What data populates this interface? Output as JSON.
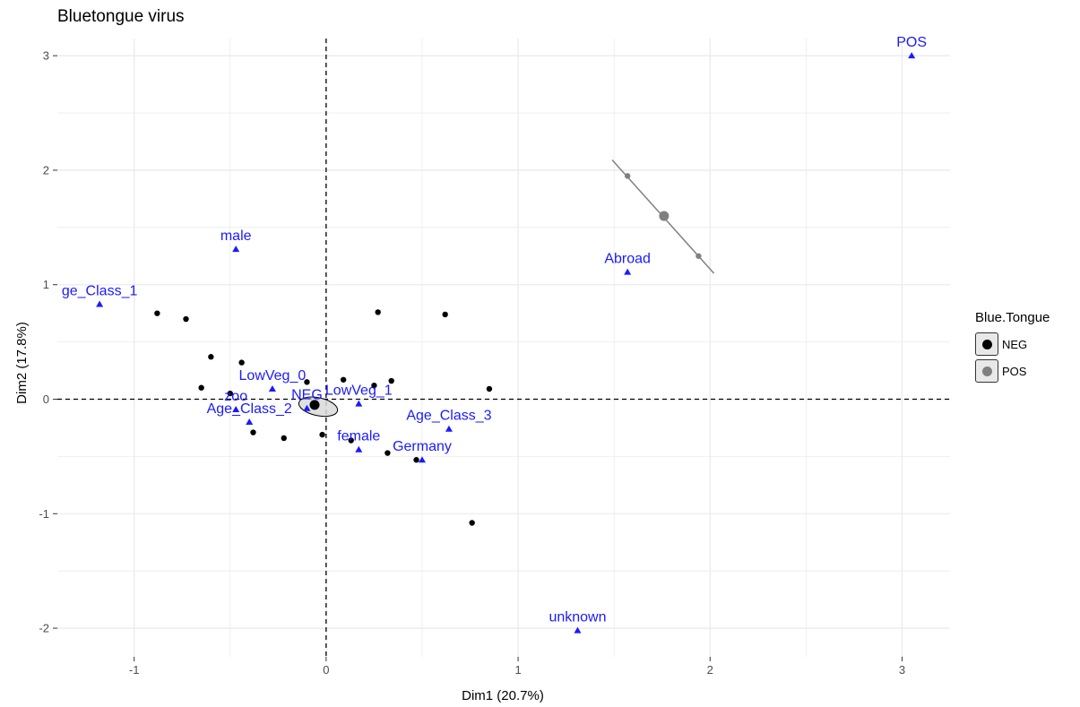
{
  "title": "Bluetongue virus",
  "chart_data": {
    "type": "scatter",
    "title": "Bluetongue virus",
    "xlabel": "Dim1 (20.7%)",
    "ylabel": "Dim2 (17.8%)",
    "xlim": [
      -1.4,
      3.25
    ],
    "ylim": [
      -2.25,
      3.15
    ],
    "x_ticks": [
      -1,
      0,
      1,
      2,
      3
    ],
    "x_tick_labels": [
      "-1",
      "0",
      "1",
      "2",
      "3"
    ],
    "y_ticks": [
      -2,
      -1,
      0,
      1,
      2,
      3
    ],
    "y_tick_labels": [
      "-2",
      "-1",
      "0",
      "1",
      "2",
      "3"
    ],
    "grid": true,
    "reference_lines": {
      "x": 0,
      "y": 0,
      "style": "dashed"
    },
    "legend": {
      "title": "Blue.Tongue",
      "position": "right",
      "items": [
        {
          "label": "NEG",
          "color": "#000000"
        },
        {
          "label": "POS",
          "color": "#808080"
        }
      ]
    },
    "individuals": [
      {
        "group": "NEG",
        "x": -0.88,
        "y": 0.75
      },
      {
        "group": "NEG",
        "x": -0.73,
        "y": 0.7
      },
      {
        "group": "NEG",
        "x": -0.6,
        "y": 0.37
      },
      {
        "group": "NEG",
        "x": -0.65,
        "y": 0.1
      },
      {
        "group": "NEG",
        "x": -0.5,
        "y": 0.05
      },
      {
        "group": "NEG",
        "x": -0.44,
        "y": 0.32
      },
      {
        "group": "NEG",
        "x": -0.38,
        "y": -0.29
      },
      {
        "group": "NEG",
        "x": -0.22,
        "y": -0.34
      },
      {
        "group": "NEG",
        "x": -0.02,
        "y": -0.31
      },
      {
        "group": "NEG",
        "x": -0.1,
        "y": 0.15
      },
      {
        "group": "NEG",
        "x": 0.09,
        "y": 0.17
      },
      {
        "group": "NEG",
        "x": 0.25,
        "y": 0.12
      },
      {
        "group": "NEG",
        "x": 0.27,
        "y": 0.76
      },
      {
        "group": "NEG",
        "x": 0.34,
        "y": 0.16
      },
      {
        "group": "NEG",
        "x": 0.62,
        "y": 0.74
      },
      {
        "group": "NEG",
        "x": 0.85,
        "y": 0.09
      },
      {
        "group": "NEG",
        "x": 0.13,
        "y": -0.36
      },
      {
        "group": "NEG",
        "x": 0.32,
        "y": -0.47
      },
      {
        "group": "NEG",
        "x": 0.47,
        "y": -0.53
      },
      {
        "group": "NEG",
        "x": 0.76,
        "y": -1.08
      },
      {
        "group": "POS",
        "x": 1.57,
        "y": 1.95
      },
      {
        "group": "POS",
        "x": 1.94,
        "y": 1.25
      }
    ],
    "group_means": [
      {
        "group": "NEG",
        "x": -0.06,
        "y": -0.05
      },
      {
        "group": "POS",
        "x": 1.76,
        "y": 1.6
      }
    ],
    "variables": [
      {
        "label": "POS",
        "x": 3.05,
        "y": 3.0
      },
      {
        "label": "Abroad",
        "x": 1.57,
        "y": 1.11
      },
      {
        "label": "male",
        "x": -0.47,
        "y": 1.31
      },
      {
        "label": "ge_Class_1",
        "x": -1.18,
        "y": 0.83
      },
      {
        "label": "LowVeg_0",
        "x": -0.28,
        "y": 0.09
      },
      {
        "label": "LowVeg_1",
        "x": 0.17,
        "y": -0.04
      },
      {
        "label": "NEG",
        "x": -0.1,
        "y": -0.08
      },
      {
        "label": "zoo",
        "x": -0.47,
        "y": -0.09
      },
      {
        "label": "Age_Class_2",
        "x": -0.4,
        "y": -0.2
      },
      {
        "label": "Age_Class_3",
        "x": 0.64,
        "y": -0.26
      },
      {
        "label": "female",
        "x": 0.17,
        "y": -0.44
      },
      {
        "label": "Germany",
        "x": 0.5,
        "y": -0.53
      },
      {
        "label": "unknown",
        "x": 1.31,
        "y": -2.02
      }
    ],
    "colors": {
      "variables": "#1a1aff",
      "neg": "#000000",
      "pos": "#808080",
      "grid": "#ebebeb"
    }
  }
}
